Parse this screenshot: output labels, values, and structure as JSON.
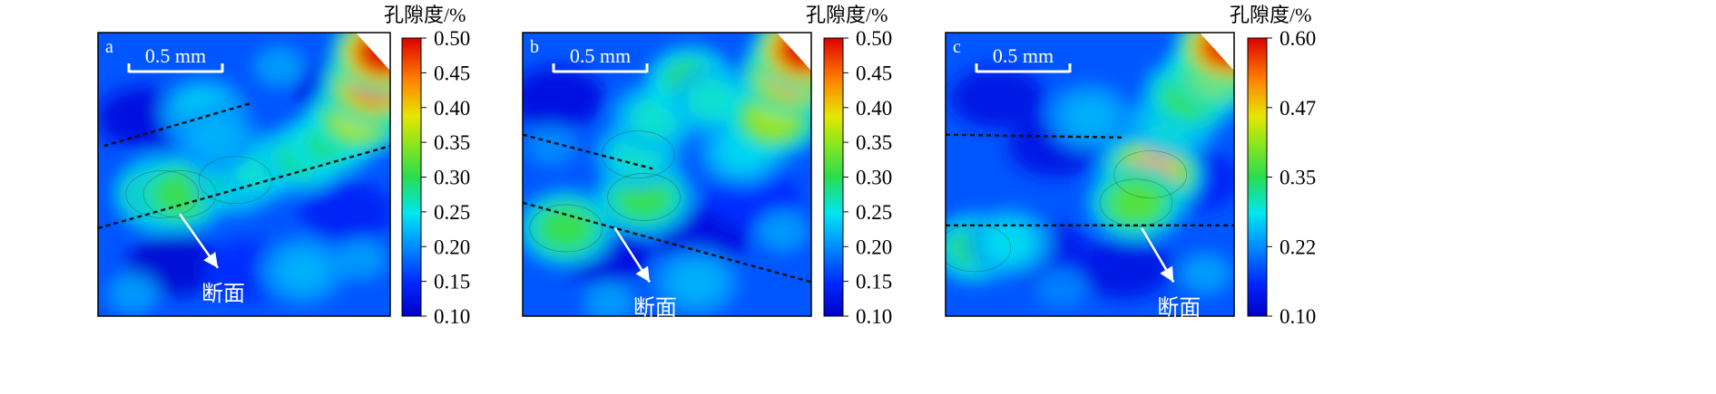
{
  "chart_data": [
    {
      "type": "heatmap",
      "panel_label": "a",
      "scale_bar_label": "0.5 mm",
      "annotation": "断面",
      "colorbar_title": "孔隙度/%",
      "colorbar_ticks": [
        "0.50",
        "0.45",
        "0.40",
        "0.35",
        "0.30",
        "0.25",
        "0.20",
        "0.15",
        "0.10"
      ],
      "vmin": 0.1,
      "vmax": 0.5,
      "blobs": [
        {
          "x": 0.22,
          "y": 0.57,
          "v": 0.34
        },
        {
          "x": 0.28,
          "y": 0.57,
          "v": 0.31
        },
        {
          "x": 0.47,
          "y": 0.52,
          "v": 0.27
        },
        {
          "x": 0.55,
          "y": 0.48,
          "v": 0.26
        },
        {
          "x": 0.7,
          "y": 0.44,
          "v": 0.28
        },
        {
          "x": 0.8,
          "y": 0.38,
          "v": 0.3
        },
        {
          "x": 0.89,
          "y": 0.3,
          "v": 0.37
        },
        {
          "x": 0.95,
          "y": 0.18,
          "v": 0.46
        },
        {
          "x": 0.98,
          "y": 0.07,
          "v": 0.5
        },
        {
          "x": 0.36,
          "y": 0.28,
          "v": 0.24
        },
        {
          "x": 0.4,
          "y": 0.37,
          "v": 0.22
        },
        {
          "x": 0.62,
          "y": 0.12,
          "v": 0.21
        },
        {
          "x": 0.7,
          "y": 0.84,
          "v": 0.22
        },
        {
          "x": 0.12,
          "y": 0.92,
          "v": 0.21
        },
        {
          "x": 0.9,
          "y": 0.8,
          "v": 0.21
        }
      ],
      "lows": [
        {
          "x": 0.16,
          "y": 0.3,
          "v": 0.12
        },
        {
          "x": 0.26,
          "y": 0.82,
          "v": 0.11
        },
        {
          "x": 0.83,
          "y": 0.2,
          "v": 0.13
        },
        {
          "x": 0.85,
          "y": 0.63,
          "v": 0.14
        },
        {
          "x": 0.52,
          "y": 0.84,
          "v": 0.15
        }
      ],
      "dashed_lines": [
        {
          "x1": 0.02,
          "y1": 0.4,
          "x2": 0.52,
          "y2": 0.25
        },
        {
          "x1": 0.0,
          "y1": 0.69,
          "x2": 1.0,
          "y2": 0.4
        }
      ],
      "arrow": {
        "x1": 0.28,
        "y1": 0.64,
        "x2": 0.41,
        "y2": 0.83
      }
    },
    {
      "type": "heatmap",
      "panel_label": "b",
      "scale_bar_label": "0.5 mm",
      "annotation": "断面",
      "colorbar_title": "孔隙度/%",
      "colorbar_ticks": [
        "0.50",
        "0.45",
        "0.40",
        "0.35",
        "0.30",
        "0.25",
        "0.20",
        "0.15",
        "0.10"
      ],
      "vmin": 0.1,
      "vmax": 0.5,
      "blobs": [
        {
          "x": 0.15,
          "y": 0.69,
          "v": 0.31
        },
        {
          "x": 0.42,
          "y": 0.58,
          "v": 0.31
        },
        {
          "x": 0.4,
          "y": 0.43,
          "v": 0.26
        },
        {
          "x": 0.46,
          "y": 0.3,
          "v": 0.26
        },
        {
          "x": 0.58,
          "y": 0.17,
          "v": 0.3
        },
        {
          "x": 0.66,
          "y": 0.24,
          "v": 0.26
        },
        {
          "x": 0.76,
          "y": 0.42,
          "v": 0.24
        },
        {
          "x": 0.87,
          "y": 0.3,
          "v": 0.36
        },
        {
          "x": 0.94,
          "y": 0.14,
          "v": 0.46
        },
        {
          "x": 0.98,
          "y": 0.06,
          "v": 0.5
        },
        {
          "x": 0.6,
          "y": 0.88,
          "v": 0.22
        },
        {
          "x": 0.3,
          "y": 0.95,
          "v": 0.21
        },
        {
          "x": 0.9,
          "y": 0.7,
          "v": 0.21
        },
        {
          "x": 0.1,
          "y": 0.4,
          "v": 0.2
        }
      ],
      "lows": [
        {
          "x": 0.12,
          "y": 0.23,
          "v": 0.12
        },
        {
          "x": 0.28,
          "y": 0.78,
          "v": 0.12
        },
        {
          "x": 0.62,
          "y": 0.72,
          "v": 0.12
        },
        {
          "x": 0.8,
          "y": 0.58,
          "v": 0.15
        }
      ],
      "dashed_lines": [
        {
          "x1": 0.0,
          "y1": 0.36,
          "x2": 0.45,
          "y2": 0.48
        },
        {
          "x1": 0.0,
          "y1": 0.6,
          "x2": 1.0,
          "y2": 0.88
        }
      ],
      "arrow": {
        "x1": 0.32,
        "y1": 0.69,
        "x2": 0.44,
        "y2": 0.88
      }
    },
    {
      "type": "heatmap",
      "panel_label": "c",
      "scale_bar_label": "0.5 mm",
      "annotation": "断面",
      "colorbar_title": "孔隙度/%",
      "colorbar_ticks": [
        "0.60",
        "0.47",
        "0.35",
        "0.22",
        "0.10"
      ],
      "vmin": 0.1,
      "vmax": 0.6,
      "blobs": [
        {
          "x": 0.71,
          "y": 0.5,
          "v": 0.5
        },
        {
          "x": 0.66,
          "y": 0.6,
          "v": 0.38
        },
        {
          "x": 0.1,
          "y": 0.76,
          "v": 0.34
        },
        {
          "x": 0.22,
          "y": 0.74,
          "v": 0.28
        },
        {
          "x": 0.79,
          "y": 0.32,
          "v": 0.3
        },
        {
          "x": 0.85,
          "y": 0.22,
          "v": 0.36
        },
        {
          "x": 0.95,
          "y": 0.12,
          "v": 0.5
        },
        {
          "x": 0.98,
          "y": 0.05,
          "v": 0.58
        },
        {
          "x": 0.5,
          "y": 0.3,
          "v": 0.25
        },
        {
          "x": 0.9,
          "y": 0.85,
          "v": 0.24
        },
        {
          "x": 0.4,
          "y": 0.9,
          "v": 0.22
        }
      ],
      "lows": [
        {
          "x": 0.18,
          "y": 0.23,
          "v": 0.13
        },
        {
          "x": 0.38,
          "y": 0.4,
          "v": 0.13
        },
        {
          "x": 0.62,
          "y": 0.83,
          "v": 0.13
        },
        {
          "x": 0.35,
          "y": 0.78,
          "v": 0.14
        },
        {
          "x": 0.86,
          "y": 0.52,
          "v": 0.15
        }
      ],
      "dashed_lines": [
        {
          "x1": 0.0,
          "y1": 0.36,
          "x2": 0.62,
          "y2": 0.37
        },
        {
          "x1": 0.0,
          "y1": 0.68,
          "x2": 1.0,
          "y2": 0.68
        }
      ],
      "arrow": {
        "x1": 0.68,
        "y1": 0.69,
        "x2": 0.79,
        "y2": 0.88
      }
    }
  ]
}
